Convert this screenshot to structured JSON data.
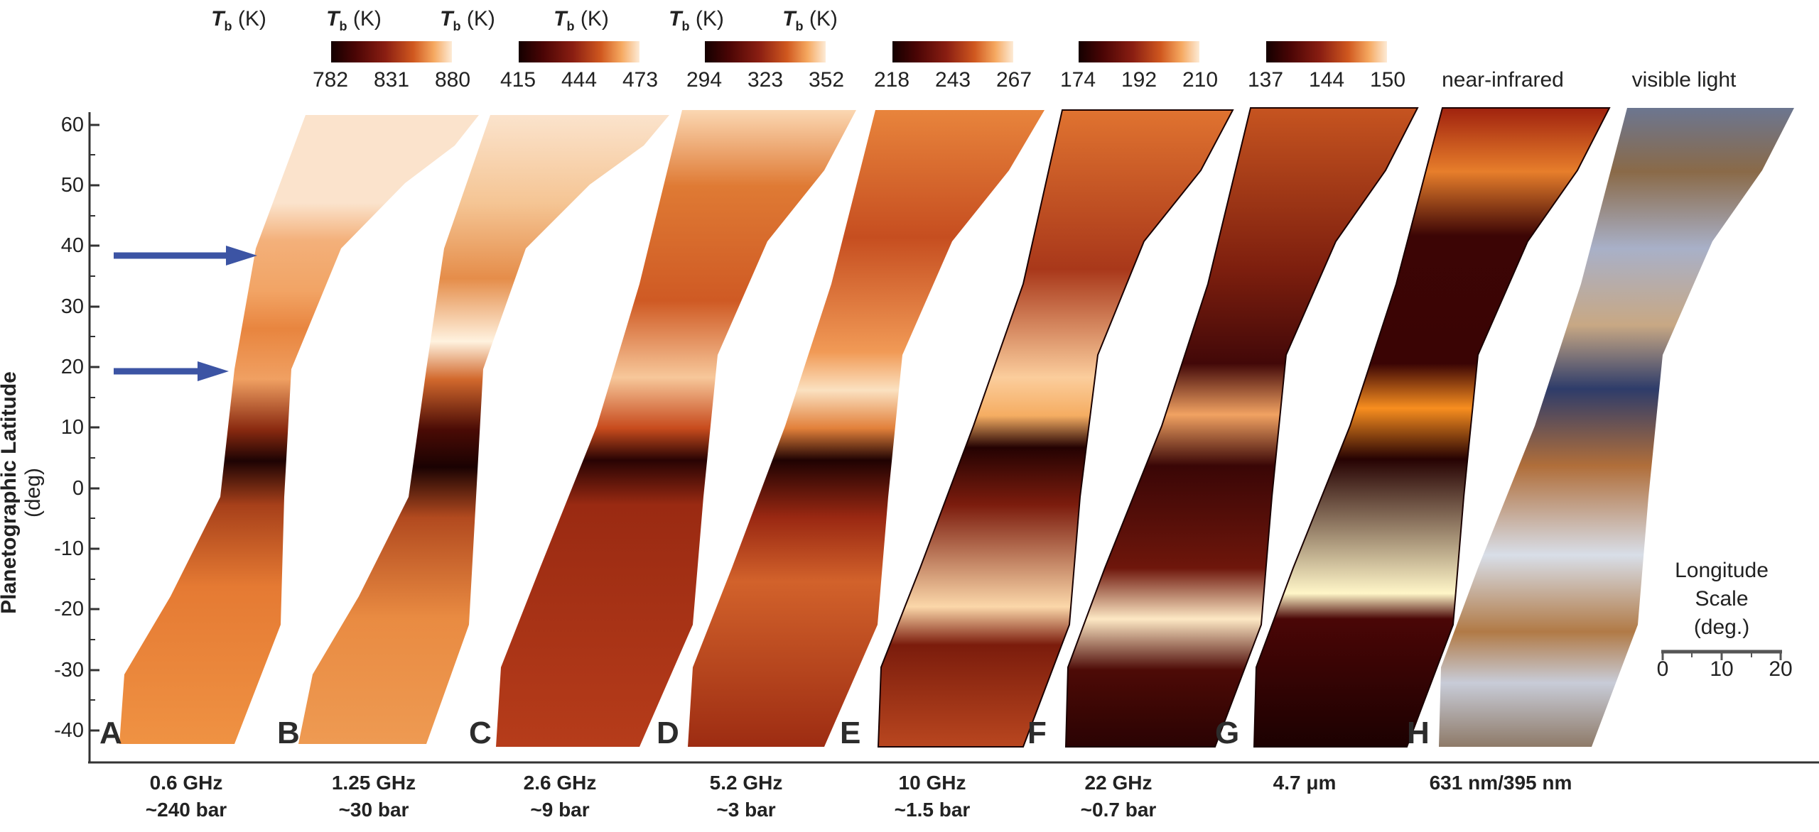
{
  "colorbars": [
    {
      "title_symbol": "T",
      "title_sub": "b",
      "title_unit": " (K)",
      "ticks": [
        "782",
        "831",
        "880"
      ]
    },
    {
      "title_symbol": "T",
      "title_sub": "b",
      "title_unit": " (K)",
      "ticks": [
        "415",
        "444",
        "473"
      ]
    },
    {
      "title_symbol": "T",
      "title_sub": "b",
      "title_unit": " (K)",
      "ticks": [
        "294",
        "323",
        "352"
      ]
    },
    {
      "title_symbol": "T",
      "title_sub": "b",
      "title_unit": " (K)",
      "ticks": [
        "218",
        "243",
        "267"
      ]
    },
    {
      "title_symbol": "T",
      "title_sub": "b",
      "title_unit": " (K)",
      "ticks": [
        "174",
        "192",
        "210"
      ]
    },
    {
      "title_symbol": "T",
      "title_sub": "b",
      "title_unit": " (K)",
      "ticks": [
        "137",
        "144",
        "150"
      ]
    }
  ],
  "image_titles": [
    "near-infrared",
    "visible light"
  ],
  "y_axis": {
    "label": "Planetographic Latitude",
    "unit": " (deg)",
    "ticks": [
      "60",
      "50",
      "40",
      "30",
      "20",
      "10",
      "0",
      "-10",
      "-20",
      "-30",
      "-40"
    ]
  },
  "panels": [
    {
      "letter": "A",
      "line1": "0.6 GHz",
      "line2": "~240 bar"
    },
    {
      "letter": "B",
      "line1": "1.25 GHz",
      "line2": "~30 bar"
    },
    {
      "letter": "C",
      "line1": "2.6 GHz",
      "line2": "~9 bar"
    },
    {
      "letter": "D",
      "line1": "5.2 GHz",
      "line2": "~3 bar"
    },
    {
      "letter": "E",
      "line1": "10 GHz",
      "line2": "~1.5 bar"
    },
    {
      "letter": "F",
      "line1": "22 GHz",
      "line2": "~0.7 bar"
    },
    {
      "letter": "G",
      "line1": "4.7 μm",
      "line2": ""
    },
    {
      "letter": "H",
      "line1": "631 nm/395 nm",
      "line2": ""
    }
  ],
  "arrows_at_latitude": [
    38,
    19
  ],
  "longitude_scale": {
    "line1": "Longitude",
    "line2": "Scale",
    "line3": "(deg.)",
    "ticks": [
      "0",
      "10",
      "20"
    ]
  },
  "colors": {
    "arrow": "#3c54a4",
    "axis": "#333333"
  }
}
